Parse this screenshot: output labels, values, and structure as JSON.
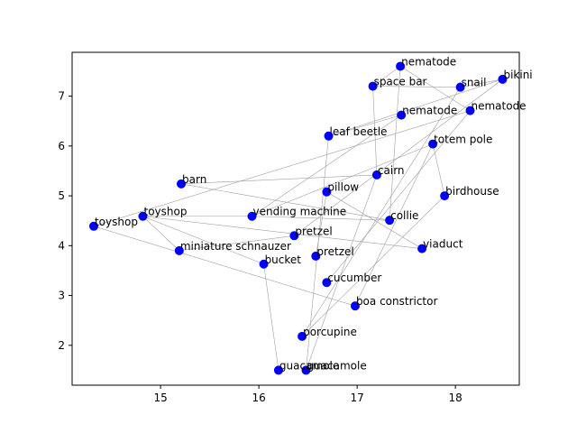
{
  "chart_data": {
    "type": "scatter",
    "title": "",
    "xlabel": "",
    "ylabel": "",
    "xlim": [
      14.1,
      18.65
    ],
    "ylim": [
      1.2,
      7.88
    ],
    "xticks": [
      15,
      16,
      17,
      18
    ],
    "yticks": [
      2,
      3,
      4,
      5,
      6,
      7
    ],
    "grid": false,
    "point_color": "#0000ff",
    "edge_color": "#a0a0a0",
    "points": [
      {
        "label": "toyshop",
        "x": 14.32,
        "y": 4.39
      },
      {
        "label": "toyshop",
        "x": 14.82,
        "y": 4.59
      },
      {
        "label": "barn",
        "x": 15.21,
        "y": 5.24
      },
      {
        "label": "miniature schnauzer",
        "x": 15.19,
        "y": 3.9
      },
      {
        "label": "vending machine",
        "x": 15.93,
        "y": 4.59
      },
      {
        "label": "bucket",
        "x": 16.05,
        "y": 3.63
      },
      {
        "label": "guacamole",
        "x": 16.2,
        "y": 1.5
      },
      {
        "label": "guacamole",
        "x": 16.48,
        "y": 1.5
      },
      {
        "label": "porcupine",
        "x": 16.44,
        "y": 2.18
      },
      {
        "label": "pretzel",
        "x": 16.36,
        "y": 4.2
      },
      {
        "label": "pretzel",
        "x": 16.58,
        "y": 3.79
      },
      {
        "label": "pillow",
        "x": 16.69,
        "y": 5.08
      },
      {
        "label": "cucumber",
        "x": 16.69,
        "y": 3.26
      },
      {
        "label": "leaf beetle",
        "x": 16.71,
        "y": 6.2
      },
      {
        "label": "boa constrictor",
        "x": 16.98,
        "y": 2.79
      },
      {
        "label": "space bar",
        "x": 17.16,
        "y": 7.2
      },
      {
        "label": "cairn",
        "x": 17.2,
        "y": 5.42
      },
      {
        "label": "collie",
        "x": 17.33,
        "y": 4.51
      },
      {
        "label": "nematode",
        "x": 17.44,
        "y": 7.6
      },
      {
        "label": "nematode",
        "x": 17.45,
        "y": 6.62
      },
      {
        "label": "viaduct",
        "x": 17.66,
        "y": 3.94
      },
      {
        "label": "totem pole",
        "x": 17.77,
        "y": 6.04
      },
      {
        "label": "birdhouse",
        "x": 17.89,
        "y": 5.0
      },
      {
        "label": "snail",
        "x": 18.05,
        "y": 7.18
      },
      {
        "label": "nematode",
        "x": 18.15,
        "y": 6.71
      },
      {
        "label": "bikini",
        "x": 18.48,
        "y": 7.34
      }
    ],
    "edges": [
      [
        0,
        14
      ],
      [
        1,
        3
      ],
      [
        1,
        20
      ],
      [
        1,
        5
      ],
      [
        2,
        16
      ],
      [
        2,
        17
      ],
      [
        3,
        9
      ],
      [
        4,
        1
      ],
      [
        4,
        17
      ],
      [
        4,
        19
      ],
      [
        5,
        6
      ],
      [
        7,
        13
      ],
      [
        7,
        16
      ],
      [
        8,
        23
      ],
      [
        8,
        22
      ],
      [
        9,
        25
      ],
      [
        10,
        11
      ],
      [
        11,
        20
      ],
      [
        12,
        24
      ],
      [
        13,
        19
      ],
      [
        13,
        25
      ],
      [
        15,
        16
      ],
      [
        15,
        23
      ],
      [
        15,
        18
      ],
      [
        18,
        24
      ],
      [
        18,
        17
      ],
      [
        21,
        22
      ],
      [
        21,
        4
      ],
      [
        21,
        14
      ],
      [
        23,
        25
      ],
      [
        24,
        0
      ]
    ]
  }
}
